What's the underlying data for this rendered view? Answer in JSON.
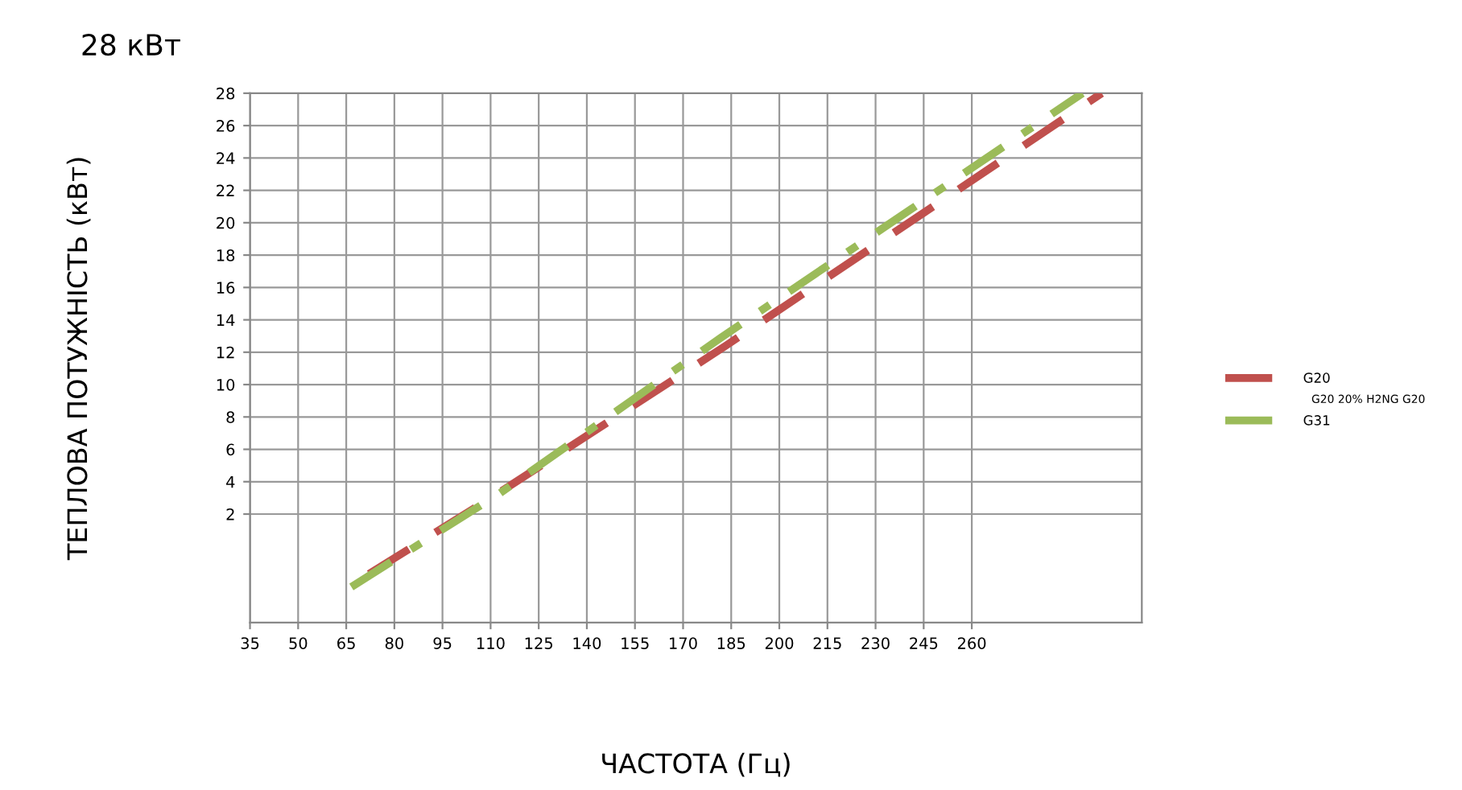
{
  "chart_data": {
    "type": "line",
    "title": "28 кВт",
    "xlabel": "ЧАСТОТА (Гц)",
    "ylabel": "ТЕПЛОВА ПОТУЖНІСТЬ (кВт)",
    "xlim": [
      35,
      313
    ],
    "xticks": [
      35,
      50,
      65,
      80,
      95,
      110,
      125,
      140,
      155,
      170,
      185,
      200,
      215,
      230,
      245,
      260
    ],
    "ylim": [
      -4.7,
      28
    ],
    "yticks": [
      2,
      4,
      6,
      8,
      10,
      12,
      14,
      16,
      18,
      20,
      22,
      24,
      26,
      28
    ],
    "grid": true,
    "legend": "right",
    "marker": "none",
    "annotations": [
      "G20 20% H2NG G20"
    ],
    "series": [
      {
        "name": "G20",
        "color": "#c0504d",
        "line_style": "dashed",
        "x": [
          72.1,
          111.7,
          183.3,
          300.5
        ],
        "values": [
          -1.7,
          3.2,
          12.4,
          28
        ]
      },
      {
        "name": "G31",
        "color": "#9bbb59",
        "line_style": "dashdot",
        "x": [
          66.6,
          113,
          181.8,
          294.5
        ],
        "values": [
          -2.5,
          3.3,
          12.9,
          28
        ]
      }
    ]
  }
}
